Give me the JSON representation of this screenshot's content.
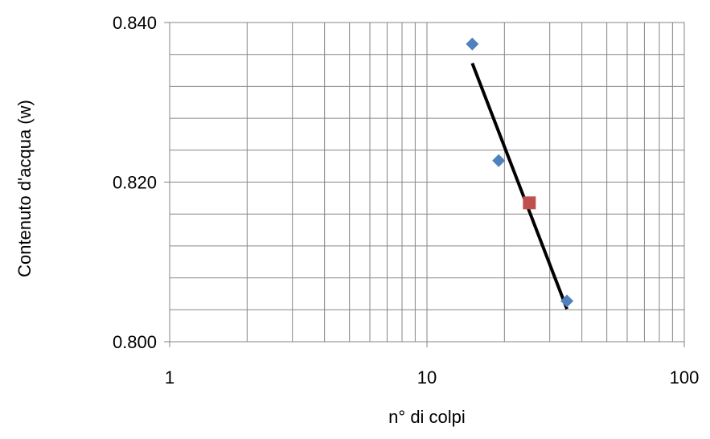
{
  "chart_data": {
    "type": "scatter",
    "title": "",
    "xlabel": "n° di colpi",
    "ylabel": "Contenuto d'acqua  (w)",
    "xscale": "log",
    "xlim": [
      1,
      100
    ],
    "ylim": [
      0.8,
      0.84
    ],
    "xticks": [
      {
        "value": 1,
        "label": "1"
      },
      {
        "value": 10,
        "label": "10"
      },
      {
        "value": 100,
        "label": "100"
      }
    ],
    "yticks": [
      {
        "value": 0.8,
        "label": "0.800"
      },
      {
        "value": 0.82,
        "label": "0.820"
      },
      {
        "value": 0.84,
        "label": "0.840"
      }
    ],
    "y_minor_gridlines": [
      0.804,
      0.808,
      0.812,
      0.816,
      0.824,
      0.828,
      0.832,
      0.836
    ],
    "grid": true,
    "legend": "none",
    "series": [
      {
        "marker": "diamond",
        "color": "#4F81BD",
        "points": [
          {
            "x": 15,
            "y": 0.8373
          },
          {
            "x": 19,
            "y": 0.8227
          },
          {
            "x": 35,
            "y": 0.8051
          }
        ]
      },
      {
        "marker": "square",
        "color": "#C0504D",
        "points": [
          {
            "x": 25,
            "y": 0.8174
          }
        ]
      },
      {
        "marker": "line",
        "color": "#000000",
        "points": [
          {
            "x": 15,
            "y": 0.8349
          },
          {
            "x": 35,
            "y": 0.8041
          }
        ]
      }
    ]
  }
}
